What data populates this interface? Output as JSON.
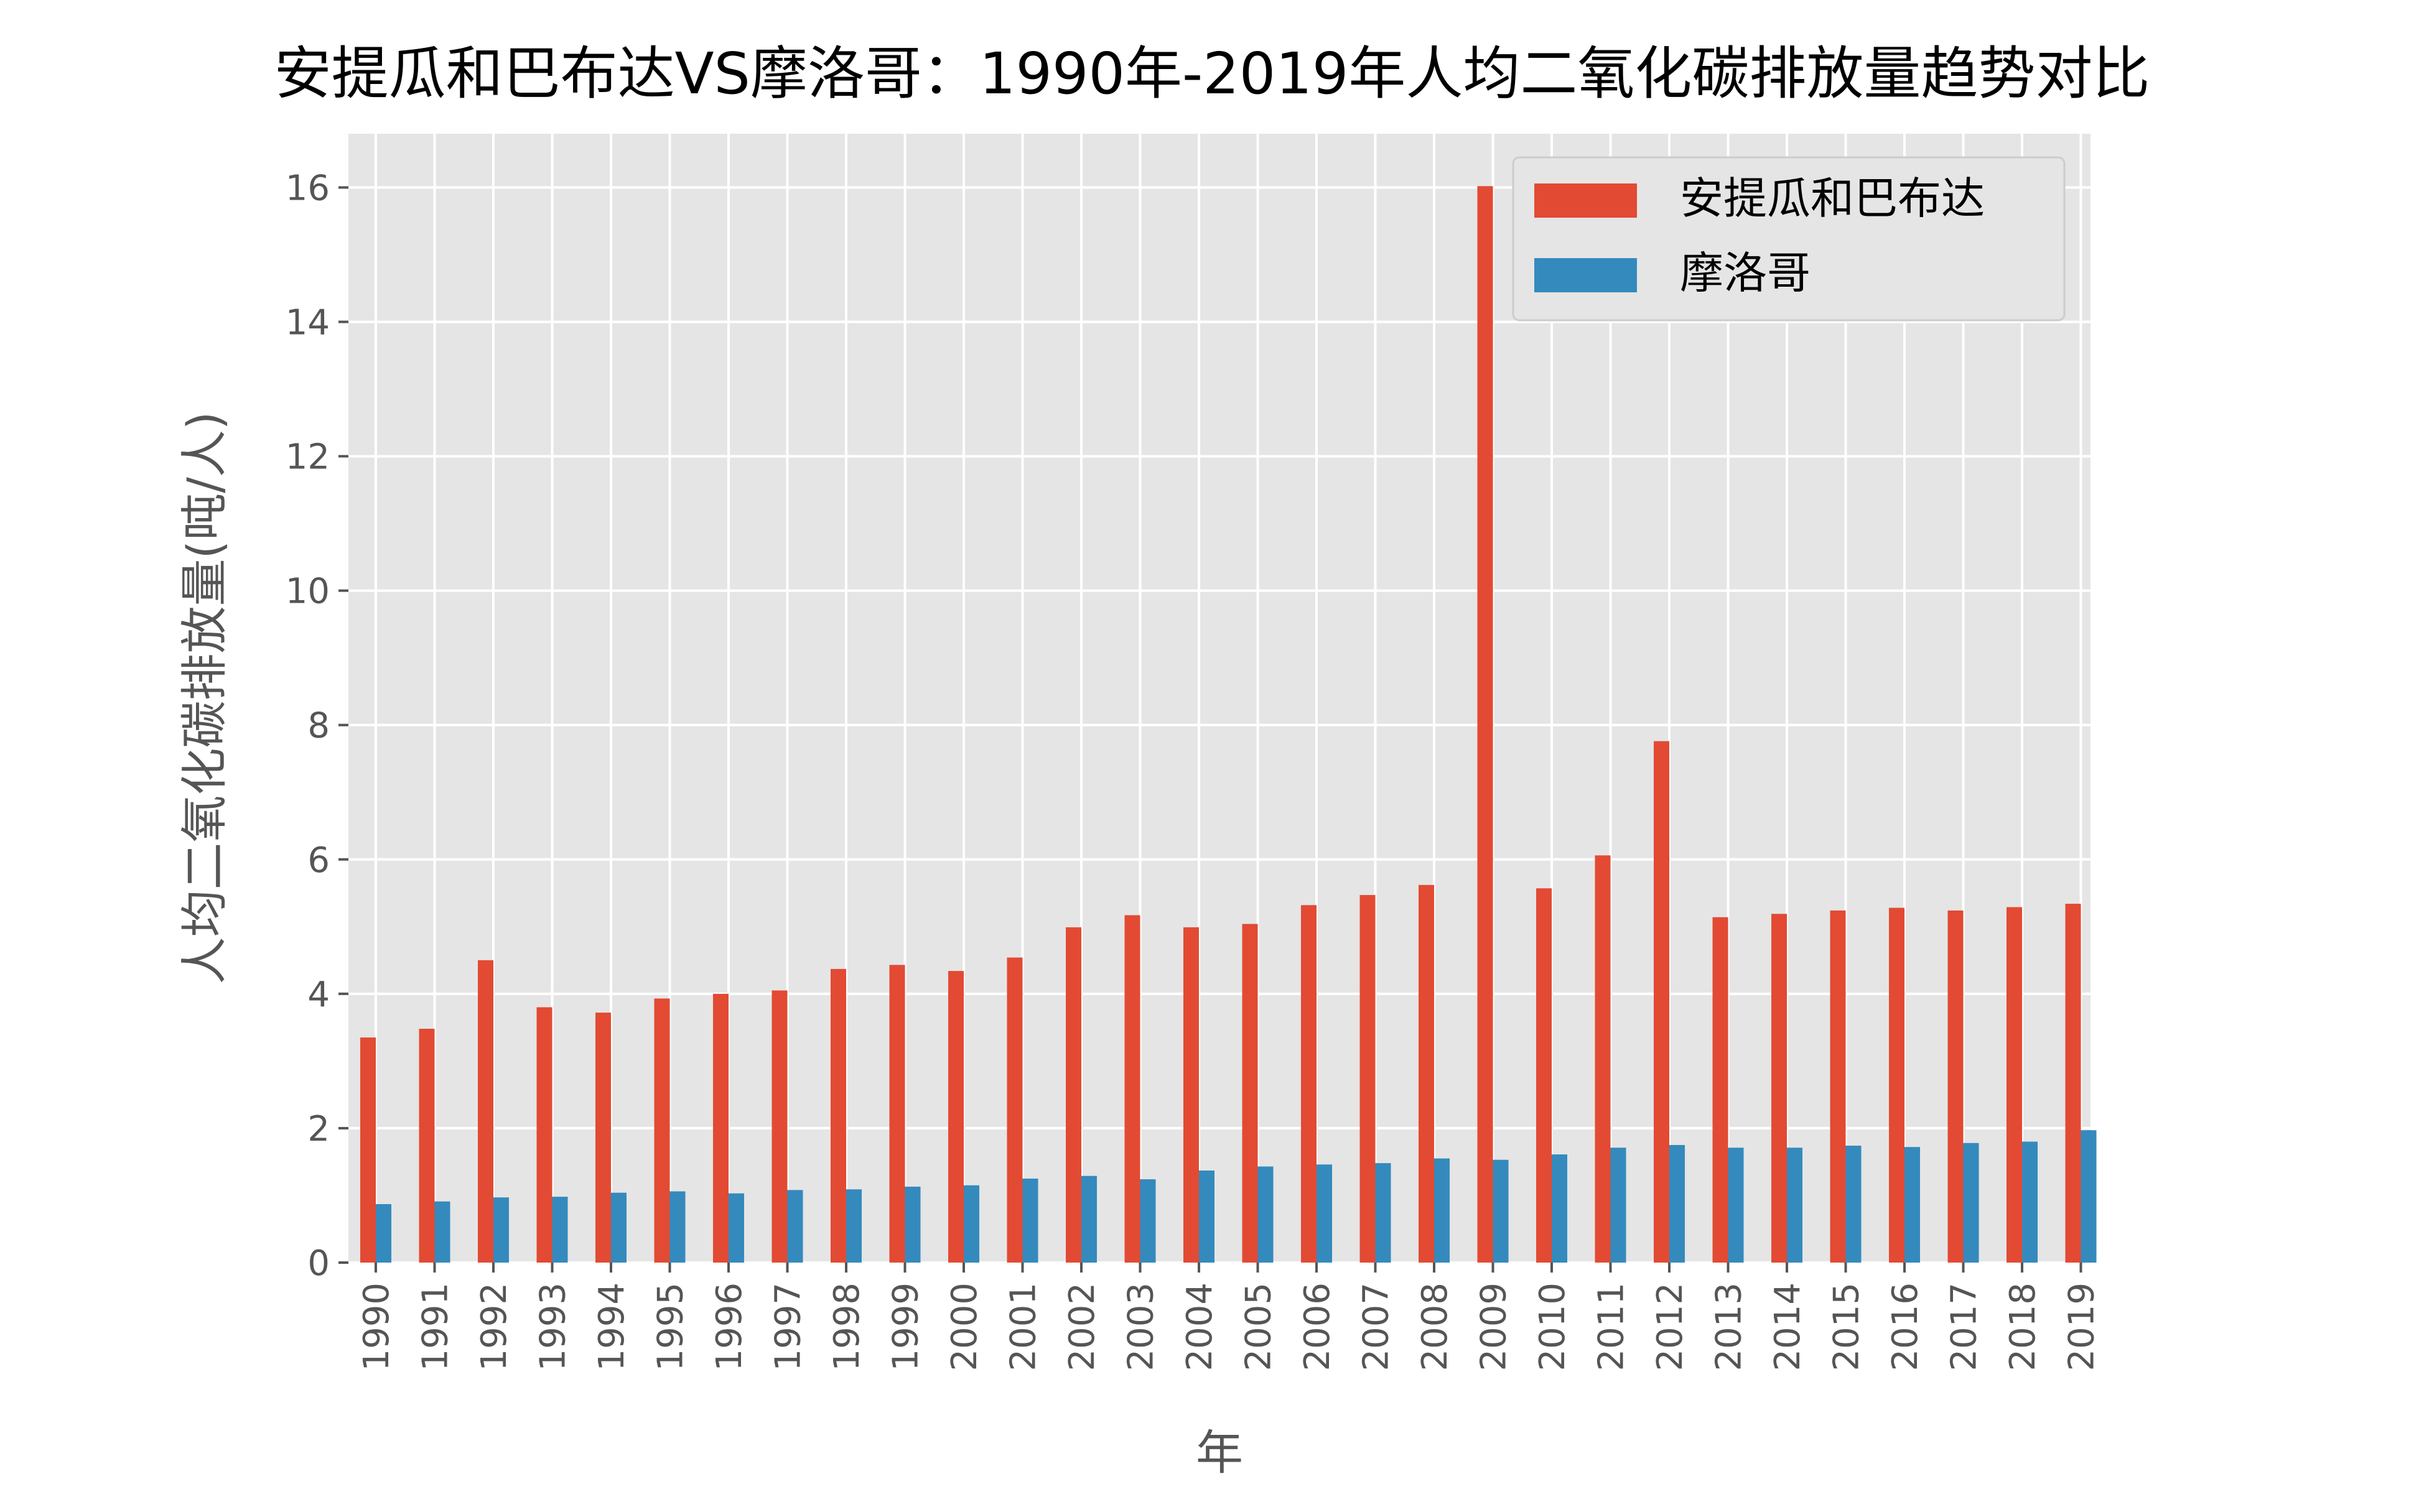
{
  "chart_data": {
    "type": "bar",
    "title": "安提瓜和巴布达VS摩洛哥：1990年-2019年人均二氧化碳排放量趋势对比",
    "xlabel": "年",
    "ylabel": "人均二氧化碳排放量(吨/人)",
    "ylim": [
      0,
      16.8
    ],
    "yticks": [
      0,
      2,
      4,
      6,
      8,
      10,
      12,
      14,
      16
    ],
    "grid": true,
    "legend_position": "top-right",
    "categories": [
      "1990",
      "1991",
      "1992",
      "1993",
      "1994",
      "1995",
      "1996",
      "1997",
      "1998",
      "1999",
      "2000",
      "2001",
      "2002",
      "2003",
      "2004",
      "2005",
      "2006",
      "2007",
      "2008",
      "2009",
      "2010",
      "2011",
      "2012",
      "2013",
      "2014",
      "2015",
      "2016",
      "2017",
      "2018",
      "2019"
    ],
    "series": [
      {
        "name": "安提瓜和巴布达",
        "color": "#E24A33",
        "values": [
          3.35,
          3.48,
          4.5,
          3.8,
          3.72,
          3.93,
          4.0,
          4.05,
          4.37,
          4.43,
          4.34,
          4.54,
          4.99,
          5.17,
          4.99,
          5.04,
          5.32,
          5.47,
          5.62,
          16.02,
          5.57,
          6.06,
          7.76,
          5.14,
          5.19,
          5.24,
          5.28,
          5.24,
          5.29,
          5.34
        ]
      },
      {
        "name": "摩洛哥",
        "color": "#348ABD",
        "values": [
          0.87,
          0.91,
          0.97,
          0.98,
          1.04,
          1.06,
          1.03,
          1.08,
          1.09,
          1.13,
          1.15,
          1.25,
          1.29,
          1.24,
          1.37,
          1.43,
          1.46,
          1.48,
          1.55,
          1.53,
          1.61,
          1.71,
          1.75,
          1.71,
          1.71,
          1.74,
          1.72,
          1.78,
          1.8,
          1.97
        ]
      }
    ]
  }
}
